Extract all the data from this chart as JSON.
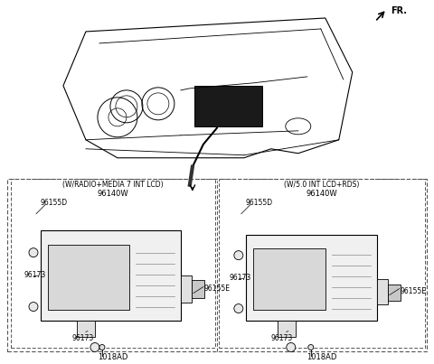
{
  "bg_color": "#ffffff",
  "line_color": "#000000",
  "gray_color": "#888888",
  "light_gray": "#aaaaaa",
  "fr_label": "FR.",
  "box1_label": "(W/RADIO+MEDIA 7 INT LCD)",
  "box2_label": "(W/5.0 INT LCD+RDS)",
  "part_96140W": "96140W",
  "part_96155D": "96155D",
  "part_96155E": "96155E",
  "part_96173": "96173",
  "part_1018AD": "1018AD",
  "dpi": 100,
  "figw": 4.8,
  "figh": 4.03
}
